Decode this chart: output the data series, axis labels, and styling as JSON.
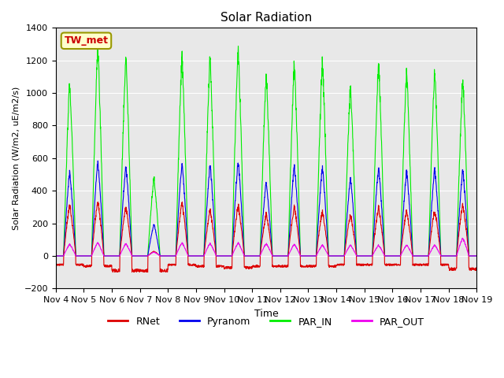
{
  "title": "Solar Radiation",
  "ylabel": "Solar Radiation (W/m2, uE/m2/s)",
  "xlabel": "Time",
  "ylim": [
    -200,
    1400
  ],
  "yticks": [
    -200,
    0,
    200,
    400,
    600,
    800,
    1000,
    1200,
    1400
  ],
  "bg_color": "#e8e8e8",
  "annotation_label": "TW_met",
  "annotation_box_facecolor": "#ffffcc",
  "annotation_box_edgecolor": "#999900",
  "series_colors": {
    "RNet": "#dd0000",
    "Pyranom": "#0000ee",
    "PAR_IN": "#00ee00",
    "PAR_OUT": "#ee00ee"
  },
  "num_days": 15,
  "x_tick_labels": [
    "Nov 4",
    "Nov 5",
    "Nov 6",
    "Nov 7",
    "Nov 8",
    "Nov 9",
    "Nov 10",
    "Nov 11",
    "Nov 12",
    "Nov 13",
    "Nov 14",
    "Nov 15",
    "Nov 16",
    "Nov 17",
    "Nov 18",
    "Nov 19"
  ],
  "legend_entries": [
    "RNet",
    "Pyranom",
    "PAR_IN",
    "PAR_OUT"
  ],
  "par_in_peaks": [
    1100,
    1330,
    1270,
    500,
    1270,
    1265,
    1320,
    1150,
    1230,
    1240,
    1085,
    1240,
    1180,
    1180,
    1130
  ],
  "pyra_peaks": [
    530,
    600,
    570,
    200,
    585,
    575,
    600,
    465,
    570,
    560,
    490,
    560,
    535,
    550,
    545
  ],
  "rnet_peaks": [
    330,
    350,
    320,
    30,
    340,
    300,
    330,
    275,
    320,
    290,
    270,
    315,
    295,
    300,
    340
  ],
  "par_out_peaks": [
    75,
    85,
    80,
    25,
    85,
    80,
    85,
    80,
    75,
    70,
    70,
    70,
    70,
    70,
    115
  ],
  "rnet_night": [
    -60,
    -70,
    -100,
    -100,
    -60,
    -70,
    -80,
    -70,
    -70,
    -70,
    -60,
    -60,
    -60,
    -60,
    -90
  ]
}
